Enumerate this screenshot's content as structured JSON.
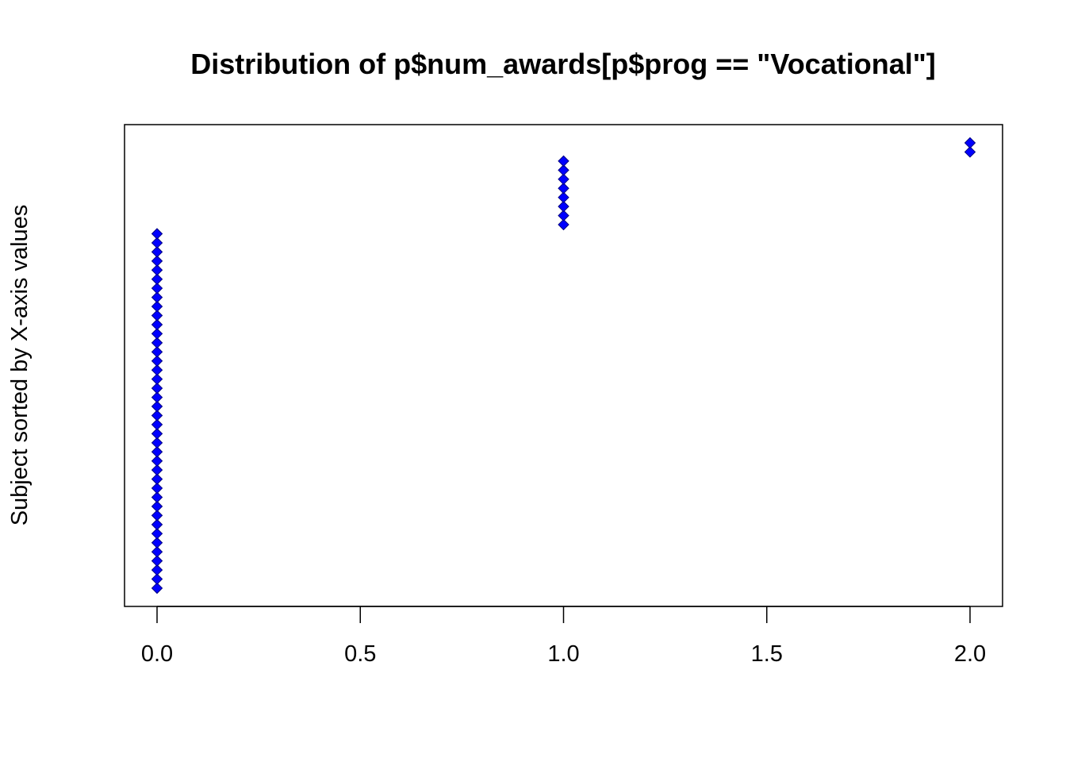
{
  "chart_data": {
    "type": "scatter",
    "title": "Distribution of p$num_awards[p$prog == \"Vocational\"]",
    "xlabel": "",
    "ylabel": "Subject sorted by X-axis values",
    "xlim": [
      -0.08,
      2.08
    ],
    "ylim": [
      1,
      50
    ],
    "grid": false,
    "legend": "none",
    "x_ticks": [
      0.0,
      0.5,
      1.0,
      1.5,
      2.0
    ],
    "x_tick_labels": [
      "0.0",
      "0.5",
      "1.0",
      "1.5",
      "2.0"
    ],
    "y_ticks_shown": false,
    "marker": "diamond",
    "colors": {
      "marker_fill": "#0000ff",
      "marker_edge": "#000080",
      "axis": "#000000"
    },
    "series": [
      {
        "values": [
          {
            "x": 0,
            "count": 40
          },
          {
            "x": 1,
            "count": 8
          },
          {
            "x": 2,
            "count": 2
          }
        ]
      }
    ]
  }
}
